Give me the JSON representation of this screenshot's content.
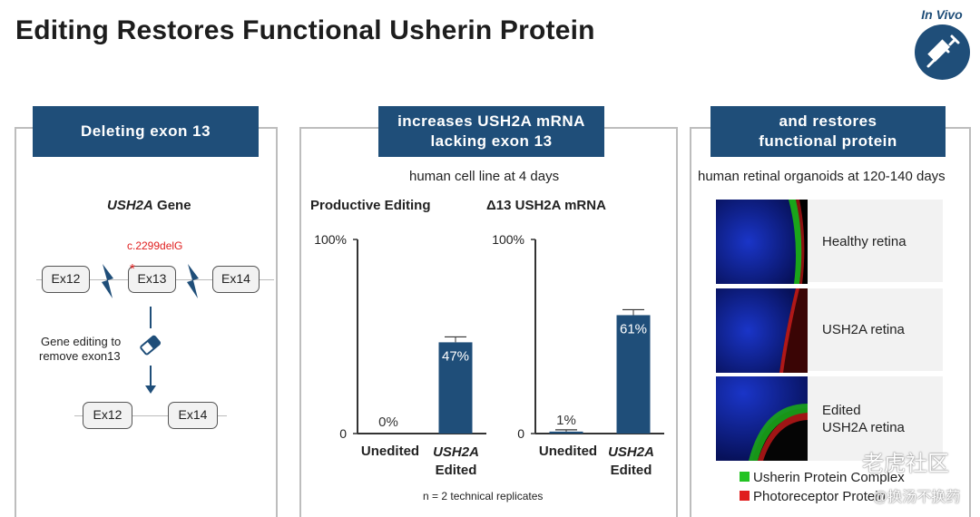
{
  "title": "Editing Restores Functional Usherin Protein",
  "in_vivo": {
    "label": "In Vivo",
    "icon": "syringe-icon"
  },
  "panel1": {
    "header": "Deleting exon 13",
    "gene_name": "USH2A",
    "gene_suffix": " Gene",
    "mutation": "c.2299delG",
    "exons_top": [
      "Ex12",
      "Ex13",
      "Ex14"
    ],
    "cut_icons": [
      "lightning-icon",
      "lightning-icon"
    ],
    "edit_text": [
      "Gene editing to",
      "remove exon13"
    ],
    "exons_bottom": [
      "Ex12",
      "Ex14"
    ]
  },
  "panel2": {
    "header": [
      "increases USH2A mRNA",
      "lacking exon 13"
    ],
    "subtitle": "human cell line at 4 days",
    "footnote": "n = 2 technical replicates",
    "colors": {
      "bar": "#1f4e79"
    }
  },
  "chart_data": [
    {
      "type": "bar",
      "title": "Productive Editing",
      "categories": [
        "Unedited",
        "USH2A Edited"
      ],
      "values": [
        0,
        47
      ],
      "data_labels": [
        "0%",
        "47%"
      ],
      "y_tick_labels": [
        "0",
        "100%"
      ],
      "ylim": [
        0,
        100
      ],
      "error_bars": true,
      "grid": false
    },
    {
      "type": "bar",
      "title": "Δ13 USH2A mRNA",
      "categories": [
        "Unedited",
        "USH2A Edited"
      ],
      "values": [
        1,
        61
      ],
      "data_labels": [
        "1%",
        "61%"
      ],
      "y_tick_labels": [
        "0",
        "100%"
      ],
      "ylim": [
        0,
        100
      ],
      "error_bars": true,
      "grid": false
    }
  ],
  "cat_labels": {
    "unedited": "Unedited",
    "edited_line1": "USH2A",
    "edited_line2": "Edited"
  },
  "panel3": {
    "header": [
      "and restores",
      "functional protein"
    ],
    "subtitle": "human retinal organoids at 120-140 days",
    "organoids": [
      {
        "label": [
          "Healthy retina"
        ]
      },
      {
        "label": [
          "USH2A retina"
        ]
      },
      {
        "label": [
          "Edited",
          "USH2A retina"
        ]
      }
    ],
    "legend": [
      {
        "label": "Usherin Protein Complex",
        "color": "#22c322"
      },
      {
        "label": "Photoreceptor Protein",
        "color": "#e01e1e"
      }
    ]
  },
  "watermark": {
    "line1": "老虎社区",
    "line2": "@换汤不换药"
  }
}
